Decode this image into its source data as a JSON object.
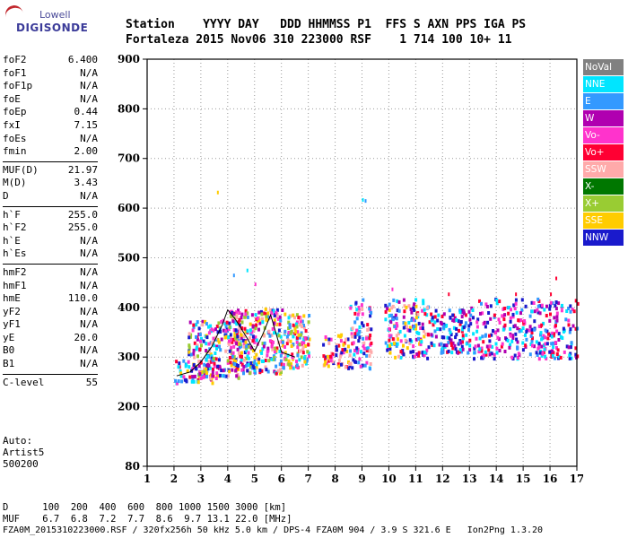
{
  "logo": {
    "top": "Lowell",
    "bottom": "DIGISONDE"
  },
  "header": {
    "row1": "Station    YYYY DAY   DDD HHMMSS P1  FFS S AXN PPS IGA PS",
    "row2": "Fortaleza 2015 Nov06 310 223000 RSF    1 714 100 10+ 11"
  },
  "params_groups": [
    [
      {
        "k": "foF2",
        "v": "6.400"
      },
      {
        "k": "foF1",
        "v": "N/A"
      },
      {
        "k": "foF1p",
        "v": "N/A"
      },
      {
        "k": "foE",
        "v": "N/A"
      },
      {
        "k": "foEp",
        "v": "0.44"
      },
      {
        "k": "fxI",
        "v": "7.15"
      },
      {
        "k": "foEs",
        "v": "N/A"
      },
      {
        "k": "fmin",
        "v": "2.00"
      }
    ],
    [
      {
        "k": "MUF(D)",
        "v": "21.97"
      },
      {
        "k": "M(D)",
        "v": "3.43"
      },
      {
        "k": "D",
        "v": "N/A"
      }
    ],
    [
      {
        "k": "h`F",
        "v": "255.0"
      },
      {
        "k": "h`F2",
        "v": "255.0"
      },
      {
        "k": "h`E",
        "v": "N/A"
      },
      {
        "k": "h`Es",
        "v": "N/A"
      }
    ],
    [
      {
        "k": "hmF2",
        "v": "N/A"
      },
      {
        "k": "hmF1",
        "v": "N/A"
      },
      {
        "k": "hmE",
        "v": "110.0"
      },
      {
        "k": "yF2",
        "v": "N/A"
      },
      {
        "k": "yF1",
        "v": "N/A"
      },
      {
        "k": "yE",
        "v": "20.0"
      },
      {
        "k": "B0",
        "v": "N/A"
      },
      {
        "k": "B1",
        "v": "N/A"
      }
    ],
    [
      {
        "k": "C-level",
        "v": "55"
      }
    ]
  ],
  "auto": {
    "line1": "Auto:",
    "line2": "Artist5",
    "line3": "500200"
  },
  "legend": [
    {
      "label": "NoVal",
      "color": "#808080"
    },
    {
      "label": "NNE",
      "color": "#00e5ff"
    },
    {
      "label": "E",
      "color": "#3399ff"
    },
    {
      "label": "W",
      "color": "#b000b0"
    },
    {
      "label": "Vo-",
      "color": "#ff33cc"
    },
    {
      "label": "Vo+",
      "color": "#ff0033"
    },
    {
      "label": "SSW",
      "color": "#ffaaaa"
    },
    {
      "label": "X-",
      "color": "#007700"
    },
    {
      "label": "X+",
      "color": "#99cc33"
    },
    {
      "label": "SSE",
      "color": "#ffcc00"
    },
    {
      "label": "NNW",
      "color": "#1a1acc"
    }
  ],
  "chart_data": {
    "type": "scatter",
    "xlim": [
      1,
      17
    ],
    "ylim": [
      80,
      900
    ],
    "x_ticks": [
      "1",
      "2",
      "3",
      "4",
      "5",
      "6",
      "7",
      "8",
      "9",
      "10",
      "11",
      "12",
      "13",
      "14",
      "15",
      "16",
      "17"
    ],
    "y_ticks": [
      "80",
      "200",
      "300",
      "400",
      "500",
      "600",
      "700",
      "800",
      "900"
    ],
    "y_tick_values": [
      80,
      200,
      300,
      400,
      500,
      600,
      700,
      800,
      900
    ],
    "grid": true,
    "clusters": [
      {
        "x": [
          2.0,
          3.5
        ],
        "y": [
          250,
          300
        ],
        "n": 60,
        "cols": [
          1,
          2,
          4,
          5,
          9,
          10
        ]
      },
      {
        "x": [
          2.5,
          4.5
        ],
        "y": [
          260,
          380
        ],
        "n": 220,
        "cols": [
          1,
          2,
          3,
          4,
          5,
          6,
          8,
          9,
          10
        ]
      },
      {
        "x": [
          4.0,
          6.0
        ],
        "y": [
          270,
          400
        ],
        "n": 260,
        "cols": [
          1,
          2,
          3,
          4,
          5,
          6,
          8,
          9,
          10
        ]
      },
      {
        "x": [
          6.0,
          7.0
        ],
        "y": [
          280,
          390
        ],
        "n": 130,
        "cols": [
          1,
          2,
          4,
          5,
          6,
          8,
          9
        ]
      },
      {
        "x": [
          7.5,
          8.5
        ],
        "y": [
          280,
          350
        ],
        "n": 60,
        "cols": [
          4,
          5,
          6,
          9,
          10
        ]
      },
      {
        "x": [
          8.5,
          9.3
        ],
        "y": [
          280,
          420
        ],
        "n": 90,
        "cols": [
          1,
          2,
          4,
          5,
          6,
          10
        ]
      },
      {
        "x": [
          9.8,
          11.5
        ],
        "y": [
          300,
          420
        ],
        "n": 160,
        "cols": [
          1,
          2,
          3,
          4,
          5,
          6,
          9,
          10
        ]
      },
      {
        "x": [
          11.5,
          13.0
        ],
        "y": [
          310,
          400
        ],
        "n": 120,
        "cols": [
          1,
          2,
          3,
          5,
          10
        ]
      },
      {
        "x": [
          13.0,
          17.0
        ],
        "y": [
          300,
          420
        ],
        "n": 300,
        "cols": [
          1,
          2,
          3,
          4,
          5,
          10
        ]
      }
    ],
    "outliers": [
      {
        "x": 3.6,
        "y": 635,
        "c": 9
      },
      {
        "x": 9.0,
        "y": 620,
        "c": 1
      },
      {
        "x": 9.1,
        "y": 618,
        "c": 2
      },
      {
        "x": 4.2,
        "y": 468,
        "c": 2
      },
      {
        "x": 4.7,
        "y": 478,
        "c": 1
      },
      {
        "x": 16.2,
        "y": 462,
        "c": 5
      },
      {
        "x": 16.0,
        "y": 430,
        "c": 5
      },
      {
        "x": 5.0,
        "y": 450,
        "c": 4
      },
      {
        "x": 10.1,
        "y": 440,
        "c": 4
      },
      {
        "x": 12.2,
        "y": 430,
        "c": 5
      },
      {
        "x": 14.7,
        "y": 430,
        "c": 5
      }
    ],
    "trace": {
      "x": [
        2.1,
        2.6,
        3.0,
        3.4,
        3.8,
        4.0,
        4.3,
        4.7,
        5.0,
        5.3,
        5.6,
        6.0,
        6.5
      ],
      "y": [
        262,
        270,
        290,
        320,
        365,
        395,
        375,
        340,
        312,
        345,
        385,
        310,
        300
      ]
    }
  },
  "footer": {
    "d_row": "D      100  200  400  600  800 1000 1500 3000 [km]",
    "muf_row": "MUF    6.7  6.8  7.2  7.7  8.6  9.7 13.1 22.0 [MHz]",
    "info_row": "FZA0M_2015310223000.RSF / 320fx256h 50 kHz 5.0 km / DPS-4 FZA0M 904 / 3.9 S 321.6 E   Ion2Png 1.3.20"
  }
}
